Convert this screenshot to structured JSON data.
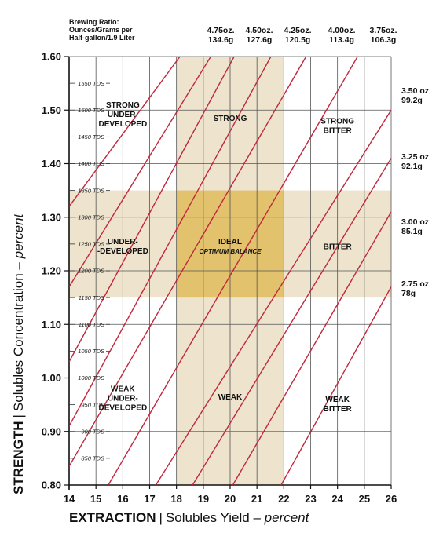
{
  "header": {
    "ratio_title_line1": "Brewing Ratio:",
    "ratio_title_line2": "Ounces/Grams per",
    "ratio_title_line3": "Half-gallon/1.9 Liter"
  },
  "top_ratio_labels": [
    {
      "oz": "4.75oz.",
      "g": "134.6g"
    },
    {
      "oz": "4.50oz.",
      "g": "127.6g"
    },
    {
      "oz": "4.25oz.",
      "g": "120.5g"
    },
    {
      "oz": "4.00oz.",
      "g": "113.4g"
    },
    {
      "oz": "3.75oz.",
      "g": "106.3g"
    }
  ],
  "side_ratio_labels": [
    {
      "oz": "3.50 oz",
      "g": "99.2g"
    },
    {
      "oz": "3.25 oz",
      "g": "92.1g"
    },
    {
      "oz": "3.00 oz",
      "g": "85.1g"
    },
    {
      "oz": "2.75 oz",
      "g": "78g"
    }
  ],
  "axis": {
    "x_title_bold": "EXTRACTION",
    "x_separator": "|",
    "x_title_rest": "Solubles Yield – ",
    "x_title_italic": "percent",
    "y_title_bold": "STRENGTH",
    "y_separator": "|",
    "y_title_rest": "Solubles Concentration – ",
    "y_title_italic": "percent"
  },
  "chart_data": {
    "type": "line",
    "xlim": [
      14,
      26
    ],
    "ylim": [
      0.8,
      1.6
    ],
    "x_ticks": [
      "14",
      "15",
      "16",
      "17",
      "18",
      "19",
      "20",
      "21",
      "22",
      "23",
      "24",
      "25",
      "26"
    ],
    "y_ticks": [
      "0.80",
      "0.90",
      "1.00",
      "1.10",
      "1.20",
      "1.30",
      "1.40",
      "1.50",
      "1.60"
    ],
    "y_tick_values": [
      0.8,
      0.9,
      1.0,
      1.1,
      1.2,
      1.3,
      1.4,
      1.5,
      1.6
    ],
    "tds_labels": [
      {
        "value": 0.85,
        "text": "850 TDS"
      },
      {
        "value": 0.9,
        "text": "900 TDS"
      },
      {
        "value": 0.95,
        "text": "950 TDS"
      },
      {
        "value": 1.0,
        "text": "1000 TDS"
      },
      {
        "value": 1.05,
        "text": "1050 TDS"
      },
      {
        "value": 1.1,
        "text": "1100 TDS"
      },
      {
        "value": 1.15,
        "text": "1150 TDS"
      },
      {
        "value": 1.2,
        "text": "1200 TDS"
      },
      {
        "value": 1.25,
        "text": "1250 TDS"
      },
      {
        "value": 1.3,
        "text": "1300 TDS"
      },
      {
        "value": 1.35,
        "text": "1350 TDS"
      },
      {
        "value": 1.4,
        "text": "1400 TDS"
      },
      {
        "value": 1.45,
        "text": "1450 TDS"
      },
      {
        "value": 1.5,
        "text": "1500 TDS"
      },
      {
        "value": 1.55,
        "text": "1550 TDS"
      }
    ],
    "bands": {
      "x_range": [
        18,
        22
      ],
      "y_range": [
        1.15,
        1.35
      ],
      "ideal": {
        "x": [
          18,
          22
        ],
        "y": [
          1.15,
          1.35
        ]
      }
    },
    "colors": {
      "band": "#eee3cc",
      "ideal": "#e2c26c",
      "ratio_line": "#c0273d",
      "grid": "#555555"
    },
    "series": [
      {
        "points": [
          [
            14,
            1.32
          ],
          [
            18.13,
            1.6
          ]
        ]
      },
      {
        "points": [
          [
            14,
            1.17
          ],
          [
            19.28,
            1.6
          ]
        ]
      },
      {
        "points": [
          [
            14,
            1.03
          ],
          [
            20.15,
            1.6
          ]
        ]
      },
      {
        "points": [
          [
            14,
            0.91
          ],
          [
            21.52,
            1.6
          ]
        ]
      },
      {
        "points": [
          [
            14,
            0.835
          ],
          [
            22.83,
            1.6
          ]
        ]
      },
      {
        "points": [
          [
            15.46,
            0.8
          ],
          [
            24.75,
            1.6
          ]
        ]
      },
      {
        "points": [
          [
            17.23,
            0.8
          ],
          [
            26,
            1.5
          ]
        ]
      },
      {
        "points": [
          [
            18.6,
            0.8
          ],
          [
            26,
            1.41
          ]
        ]
      },
      {
        "points": [
          [
            20.1,
            0.8
          ],
          [
            26,
            1.31
          ]
        ]
      },
      {
        "points": [
          [
            21.9,
            0.8
          ],
          [
            26,
            1.17
          ]
        ]
      }
    ],
    "zones": [
      {
        "lines": [
          "STRONG",
          "UNDER-",
          "DEVELOPED"
        ],
        "x": 16,
        "y": 1.505
      },
      {
        "lines": [
          "STRONG"
        ],
        "x": 20,
        "y": 1.48
      },
      {
        "lines": [
          "STRONG",
          "BITTER"
        ],
        "x": 24,
        "y": 1.475
      },
      {
        "lines": [
          "UNDER-",
          "-DEVELOPED"
        ],
        "x": 16,
        "y": 1.25
      },
      {
        "lines": [
          "IDEAL"
        ],
        "sub": "OPTIMUM BALANCE",
        "x": 20,
        "y": 1.25
      },
      {
        "lines": [
          "BITTER"
        ],
        "x": 24,
        "y": 1.24
      },
      {
        "lines": [
          "WEAK",
          "UNDER-",
          "DEVELOPED"
        ],
        "x": 16,
        "y": 0.975
      },
      {
        "lines": [
          "WEAK"
        ],
        "x": 20,
        "y": 0.96
      },
      {
        "lines": [
          "WEAK",
          "BITTER"
        ],
        "x": 24,
        "y": 0.955
      }
    ]
  }
}
